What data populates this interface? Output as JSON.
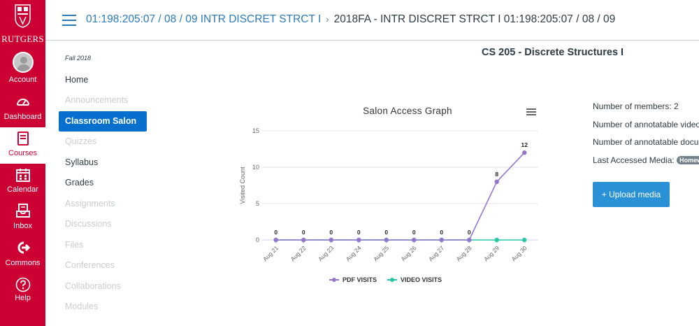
{
  "global_nav": {
    "logo_text": "RUTGERS",
    "items": [
      {
        "label": "Account",
        "icon": "avatar-icon"
      },
      {
        "label": "Dashboard",
        "icon": "dashboard-icon"
      },
      {
        "label": "Courses",
        "icon": "courses-icon",
        "active": true
      },
      {
        "label": "Calendar",
        "icon": "calendar-icon"
      },
      {
        "label": "Inbox",
        "icon": "inbox-icon"
      },
      {
        "label": "Commons",
        "icon": "commons-icon"
      },
      {
        "label": "Help",
        "icon": "help-icon"
      }
    ],
    "colors": {
      "brand": "#cc0033",
      "active_bg": "#ffffff"
    }
  },
  "header": {
    "breadcrumb_link": "01:198:205:07 / 08 / 09 INTR DISCRET STRCT I",
    "breadcrumb_separator": "›",
    "breadcrumb_current": "2018FA - INTR DISCRET STRCT I 01:198:205:07 / 08 / 09"
  },
  "course_nav": {
    "term": "Fall 2018",
    "items": [
      {
        "label": "Home",
        "state": "normal"
      },
      {
        "label": "Announcements",
        "state": "disabled"
      },
      {
        "label": "Classroom Salon",
        "state": "active"
      },
      {
        "label": "Quizzes",
        "state": "disabled"
      },
      {
        "label": "Syllabus",
        "state": "normal"
      },
      {
        "label": "Grades",
        "state": "normal"
      },
      {
        "label": "Assignments",
        "state": "disabled"
      },
      {
        "label": "Discussions",
        "state": "disabled"
      },
      {
        "label": "Files",
        "state": "disabled"
      },
      {
        "label": "Conferences",
        "state": "disabled"
      },
      {
        "label": "Collaborations",
        "state": "disabled"
      },
      {
        "label": "Modules",
        "state": "disabled"
      }
    ]
  },
  "main": {
    "course_title": "CS 205 - Discrete Structures I"
  },
  "info": {
    "members_label": "Number of members:",
    "members_value": "2",
    "annotatable_video_label": "Number of annotatable video",
    "annotatable_docs_label": "Number of annotatable docu",
    "last_accessed_label": "Last Accessed Media:",
    "last_accessed_value": "Homew",
    "upload_button": "+ Upload media"
  },
  "chart_data": {
    "type": "line",
    "title": "Salon Access Graph",
    "ylabel": "Visited Count",
    "xlabel": "",
    "categories": [
      "Aug 21",
      "Aug 22",
      "Aug 23",
      "Aug 24",
      "Aug 25",
      "Aug 26",
      "Aug 27",
      "Aug 28",
      "Aug 29",
      "Aug 30"
    ],
    "ylim": [
      0,
      15
    ],
    "yticks": [
      0,
      5,
      10,
      15
    ],
    "grid": true,
    "legend_position": "bottom",
    "series": [
      {
        "name": "PDF VISITS",
        "color": "#9575cd",
        "values": [
          0,
          0,
          0,
          0,
          0,
          0,
          0,
          0,
          8,
          12
        ]
      },
      {
        "name": "VIDEO VISITS",
        "color": "#26c6a6",
        "values": [
          0,
          0,
          0,
          0,
          0,
          0,
          0,
          0,
          0,
          0
        ]
      }
    ],
    "data_labels": [
      "0",
      "0",
      "0",
      "0",
      "0",
      "0",
      "0",
      "0",
      "8",
      "12"
    ]
  }
}
